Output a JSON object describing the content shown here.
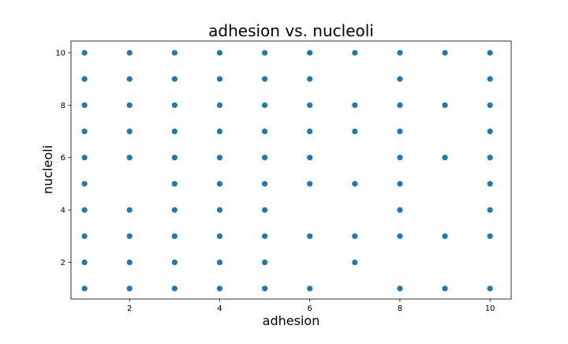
{
  "chart_data": {
    "type": "scatter",
    "title": "adhesion vs. nucleoli",
    "xlabel": "adhesion",
    "ylabel": "nucleoli",
    "xlim": [
      0.7,
      10.47
    ],
    "ylim": [
      0.6,
      10.45
    ],
    "xticks": [
      2,
      4,
      6,
      8,
      10
    ],
    "yticks": [
      2,
      4,
      6,
      8,
      10
    ],
    "xtick_labels": [
      "2",
      "4",
      "6",
      "8",
      "10"
    ],
    "ytick_labels": [
      "2",
      "4",
      "6",
      "8",
      "10"
    ],
    "grid": false,
    "legend": false,
    "marker_color": "#1f77b4",
    "series": [
      {
        "points": [
          [
            1,
            1
          ],
          [
            1,
            2
          ],
          [
            1,
            3
          ],
          [
            1,
            4
          ],
          [
            1,
            5
          ],
          [
            1,
            6
          ],
          [
            1,
            7
          ],
          [
            1,
            8
          ],
          [
            1,
            9
          ],
          [
            1,
            10
          ],
          [
            2,
            1
          ],
          [
            2,
            2
          ],
          [
            2,
            3
          ],
          [
            2,
            4
          ],
          [
            2,
            6
          ],
          [
            2,
            7
          ],
          [
            2,
            8
          ],
          [
            2,
            9
          ],
          [
            2,
            10
          ],
          [
            3,
            1
          ],
          [
            3,
            2
          ],
          [
            3,
            3
          ],
          [
            3,
            4
          ],
          [
            3,
            5
          ],
          [
            3,
            6
          ],
          [
            3,
            7
          ],
          [
            3,
            8
          ],
          [
            3,
            9
          ],
          [
            3,
            10
          ],
          [
            4,
            1
          ],
          [
            4,
            2
          ],
          [
            4,
            3
          ],
          [
            4,
            4
          ],
          [
            4,
            5
          ],
          [
            4,
            6
          ],
          [
            4,
            7
          ],
          [
            4,
            8
          ],
          [
            4,
            9
          ],
          [
            4,
            10
          ],
          [
            5,
            1
          ],
          [
            5,
            2
          ],
          [
            5,
            3
          ],
          [
            5,
            4
          ],
          [
            5,
            5
          ],
          [
            5,
            6
          ],
          [
            5,
            7
          ],
          [
            5,
            8
          ],
          [
            5,
            9
          ],
          [
            5,
            10
          ],
          [
            6,
            1
          ],
          [
            6,
            3
          ],
          [
            6,
            5
          ],
          [
            6,
            6
          ],
          [
            6,
            7
          ],
          [
            6,
            8
          ],
          [
            6,
            9
          ],
          [
            6,
            10
          ],
          [
            7,
            2
          ],
          [
            7,
            3
          ],
          [
            7,
            5
          ],
          [
            7,
            7
          ],
          [
            7,
            8
          ],
          [
            7,
            10
          ],
          [
            8,
            1
          ],
          [
            8,
            3
          ],
          [
            8,
            4
          ],
          [
            8,
            5
          ],
          [
            8,
            6
          ],
          [
            8,
            7
          ],
          [
            8,
            8
          ],
          [
            8,
            9
          ],
          [
            8,
            10
          ],
          [
            9,
            1
          ],
          [
            9,
            3
          ],
          [
            9,
            6
          ],
          [
            9,
            8
          ],
          [
            9,
            10
          ],
          [
            10,
            1
          ],
          [
            10,
            3
          ],
          [
            10,
            4
          ],
          [
            10,
            5
          ],
          [
            10,
            6
          ],
          [
            10,
            7
          ],
          [
            10,
            8
          ],
          [
            10,
            9
          ],
          [
            10,
            10
          ]
        ]
      }
    ]
  }
}
